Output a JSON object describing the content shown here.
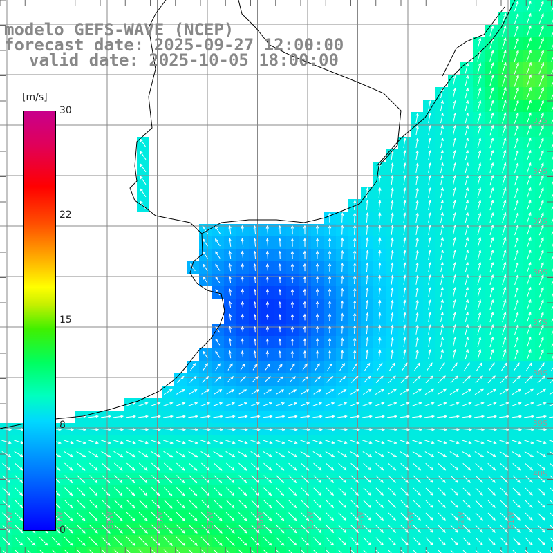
{
  "title": {
    "line1": "modelo GEFS-WAVE (NCEP)",
    "line2": "forecast date: 2025-09-27 12:00:00",
    "line3": "valid date: 2025-10-05 18:00:00"
  },
  "colorbar": {
    "unit": "[m/s]",
    "min": 0,
    "max": 30,
    "tick_labels": [
      "30",
      "22",
      "15",
      "8",
      "0"
    ],
    "colors": [
      "#0000ff",
      "#0070ff",
      "#00d8ff",
      "#00ffc0",
      "#00ff60",
      "#c8f000",
      "#ffff00",
      "#ff5000",
      "#ff0000",
      "#c8008c"
    ]
  },
  "lat_labels": [
    "33S",
    "34S",
    "35S",
    "36S",
    "37S",
    "38S",
    "39S",
    "40S"
  ],
  "lon_labels": [
    "61W",
    "60W",
    "59W",
    "58W",
    "57W",
    "56W",
    "55W",
    "54W",
    "53W",
    "52W",
    "51W"
  ],
  "field": {
    "quantity": "wind speed",
    "unit": "m/s",
    "range_shown": [
      2,
      12
    ]
  }
}
